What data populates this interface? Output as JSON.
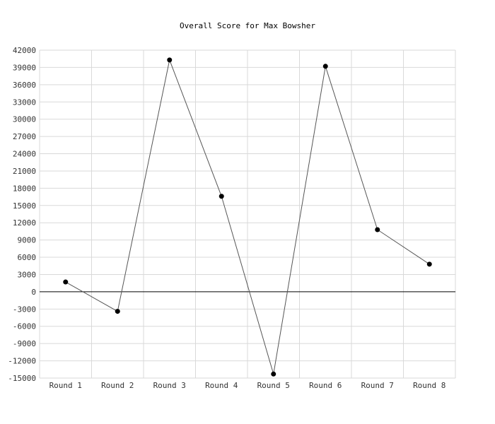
{
  "chart_data": {
    "type": "line",
    "title": "Overall Score for Max Bowsher",
    "xlabel": "",
    "ylabel": "",
    "categories": [
      "Round 1",
      "Round 2",
      "Round 3",
      "Round 4",
      "Round 5",
      "Round 6",
      "Round 7",
      "Round 8"
    ],
    "series": [
      {
        "values": [
          1700,
          -3400,
          40300,
          16600,
          -14300,
          39200,
          10800,
          4800
        ]
      }
    ],
    "ylim": [
      -15000,
      42000
    ],
    "yticks": [
      -15000,
      -12000,
      -9000,
      -6000,
      -3000,
      0,
      3000,
      6000,
      9000,
      12000,
      15000,
      18000,
      21000,
      24000,
      27000,
      30000,
      33000,
      36000,
      39000,
      42000
    ],
    "grid": true,
    "legend": "none",
    "colors": {
      "line": "#555555",
      "point": "#000000",
      "grid": "#d9d9d9",
      "zero_line": "#000000"
    }
  }
}
